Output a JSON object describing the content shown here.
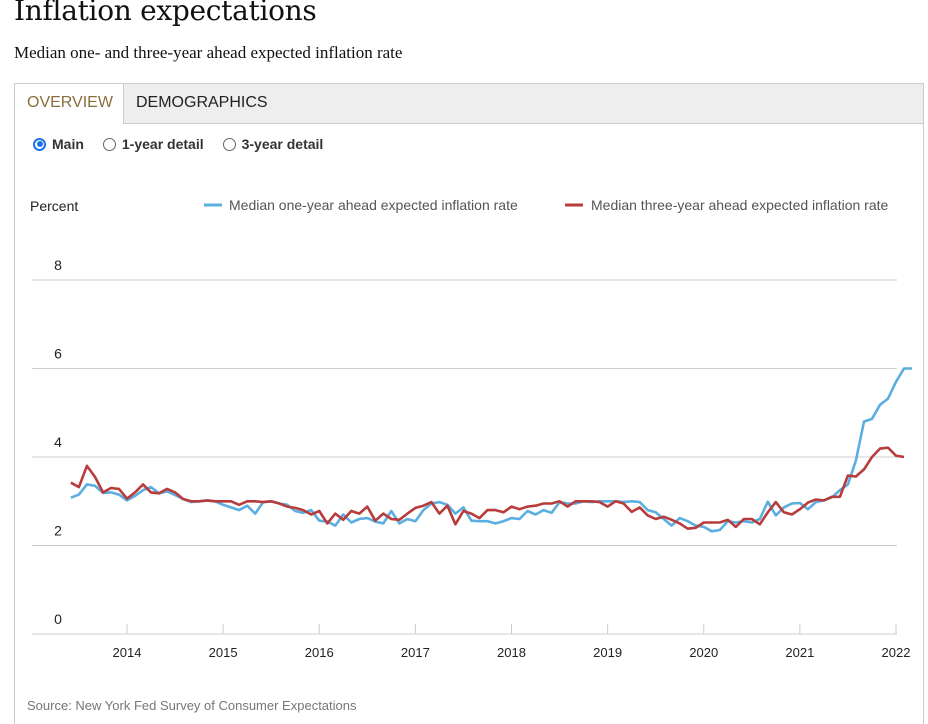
{
  "header": {
    "title": "Inflation expectations",
    "subtitle": "Median one- and three-year ahead expected inflation rate"
  },
  "tabs": [
    {
      "label": "OVERVIEW",
      "active": true
    },
    {
      "label": "DEMOGRAPHICS",
      "active": false
    }
  ],
  "view_options": [
    {
      "label": "Main",
      "checked": true
    },
    {
      "label": "1-year detail",
      "checked": false
    },
    {
      "label": "3-year detail",
      "checked": false
    }
  ],
  "source": "Source: New York Fed Survey of Consumer Expectations",
  "chart_data": {
    "type": "line",
    "title": "",
    "ylabel": "Percent",
    "xlabel": "",
    "ylim": [
      0,
      8
    ],
    "yticks": [
      0,
      2,
      4,
      6,
      8
    ],
    "xlim": [
      "2013-06",
      "2022-01"
    ],
    "xticks": [
      "2014",
      "2015",
      "2016",
      "2017",
      "2018",
      "2019",
      "2020",
      "2021",
      "2022"
    ],
    "x_start": "2013-06",
    "frequency": "monthly",
    "grid": true,
    "legend_position": "top-right",
    "series": [
      {
        "name": "Median one-year ahead expected inflation rate",
        "color": "#5aaee0",
        "values": [
          3.08,
          3.15,
          3.38,
          3.35,
          3.19,
          3.2,
          3.15,
          3.02,
          3.12,
          3.25,
          3.32,
          3.18,
          3.22,
          3.14,
          3.05,
          2.98,
          3.0,
          3.02,
          3.0,
          2.92,
          2.86,
          2.8,
          2.9,
          2.72,
          2.98,
          3.0,
          2.95,
          2.92,
          2.78,
          2.74,
          2.8,
          2.56,
          2.54,
          2.45,
          2.7,
          2.52,
          2.6,
          2.62,
          2.54,
          2.5,
          2.78,
          2.5,
          2.6,
          2.55,
          2.8,
          2.95,
          2.98,
          2.92,
          2.72,
          2.86,
          2.56,
          2.55,
          2.55,
          2.5,
          2.55,
          2.62,
          2.6,
          2.78,
          2.7,
          2.8,
          2.74,
          2.98,
          2.95,
          2.95,
          3.0,
          2.98,
          3.0,
          3.0,
          3.0,
          2.98,
          3.0,
          2.98,
          2.8,
          2.75,
          2.6,
          2.45,
          2.62,
          2.55,
          2.45,
          2.42,
          2.32,
          2.35,
          2.55,
          2.52,
          2.55,
          2.52,
          2.6,
          2.99,
          2.68,
          2.86,
          2.95,
          2.96,
          2.82,
          2.98,
          3.02,
          3.09,
          3.25,
          3.38,
          3.92,
          4.8,
          4.86,
          5.18,
          5.32,
          5.7,
          6.0,
          6.0
        ]
      },
      {
        "name": "Median three-year ahead expected inflation rate",
        "color": "#b83c3c",
        "values": [
          3.42,
          3.32,
          3.8,
          3.55,
          3.2,
          3.3,
          3.28,
          3.06,
          3.2,
          3.38,
          3.2,
          3.18,
          3.28,
          3.2,
          3.05,
          3.0,
          3.0,
          3.02,
          3.0,
          3.0,
          3.0,
          2.92,
          3.0,
          3.0,
          2.98,
          3.0,
          2.95,
          2.88,
          2.85,
          2.8,
          2.7,
          2.78,
          2.5,
          2.72,
          2.58,
          2.78,
          2.72,
          2.88,
          2.56,
          2.72,
          2.6,
          2.58,
          2.72,
          2.85,
          2.9,
          2.98,
          2.72,
          2.9,
          2.48,
          2.78,
          2.72,
          2.62,
          2.8,
          2.8,
          2.75,
          2.88,
          2.82,
          2.88,
          2.9,
          2.95,
          2.95,
          3.0,
          2.88,
          3.0,
          3.0,
          3.0,
          2.98,
          2.88,
          3.0,
          2.95,
          2.76,
          2.86,
          2.68,
          2.6,
          2.65,
          2.58,
          2.5,
          2.38,
          2.4,
          2.52,
          2.52,
          2.52,
          2.58,
          2.42,
          2.6,
          2.6,
          2.48,
          2.75,
          2.98,
          2.75,
          2.7,
          2.82,
          2.97,
          3.04,
          3.02,
          3.1,
          3.1,
          3.58,
          3.56,
          3.72,
          4.0,
          4.19,
          4.21,
          4.03,
          4.0
        ]
      }
    ]
  }
}
